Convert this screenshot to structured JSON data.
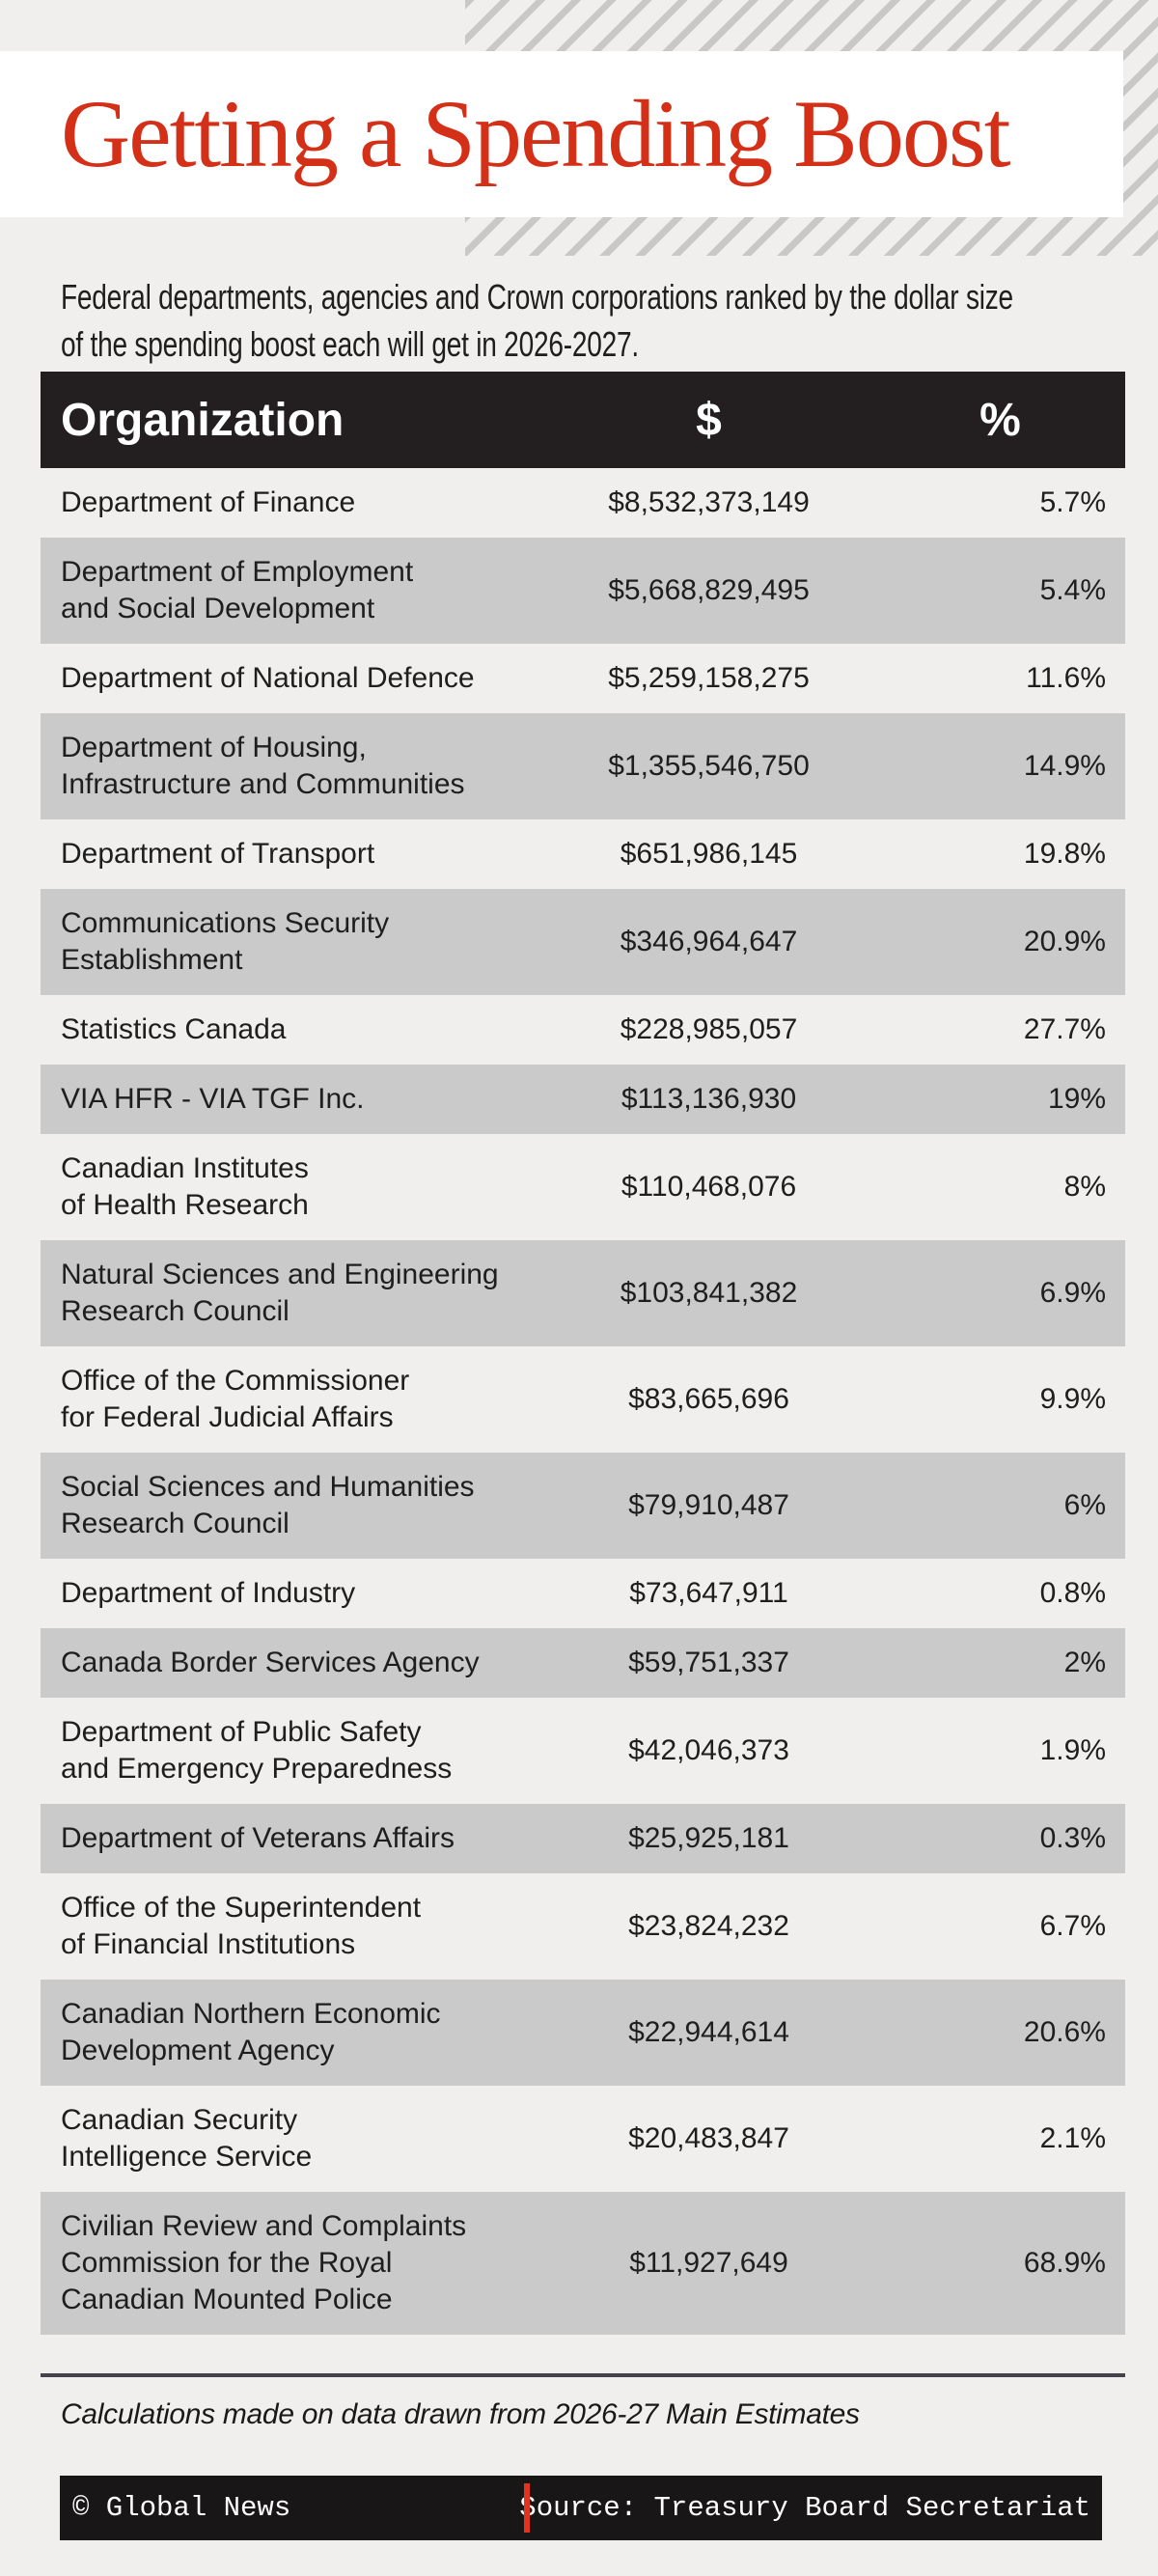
{
  "chart_data": {
    "type": "table",
    "title": "Getting a Spending Boost",
    "subtitle": "Federal departments, agencies and Crown corporations ranked by the dollar size\nof the spending boost each will get in 2026-2027.",
    "columns": [
      "Organization",
      "$",
      "%"
    ],
    "rows": [
      {
        "org": "Department of Finance",
        "amount": "$8,532,373,149",
        "pct": "5.7%"
      },
      {
        "org": "Department of Employment\nand Social Development",
        "amount": "$5,668,829,495",
        "pct": "5.4%"
      },
      {
        "org": "Department of National Defence",
        "amount": "$5,259,158,275",
        "pct": "11.6%"
      },
      {
        "org": "Department of Housing,\nInfrastructure and Communities",
        "amount": "$1,355,546,750",
        "pct": "14.9%"
      },
      {
        "org": "Department of Transport",
        "amount": "$651,986,145",
        "pct": "19.8%"
      },
      {
        "org": "Communications Security\nEstablishment",
        "amount": "$346,964,647",
        "pct": "20.9%"
      },
      {
        "org": "Statistics Canada",
        "amount": "$228,985,057",
        "pct": "27.7%"
      },
      {
        "org": "VIA HFR - VIA TGF Inc.",
        "amount": "$113,136,930",
        "pct": "19%"
      },
      {
        "org": "Canadian Institutes\nof Health Research",
        "amount": "$110,468,076",
        "pct": "8%"
      },
      {
        "org": "Natural Sciences and Engineering\nResearch Council",
        "amount": "$103,841,382",
        "pct": "6.9%"
      },
      {
        "org": "Office of the Commissioner\nfor Federal Judicial Affairs",
        "amount": "$83,665,696",
        "pct": "9.9%"
      },
      {
        "org": "Social Sciences and Humanities\nResearch Council",
        "amount": "$79,910,487",
        "pct": "6%"
      },
      {
        "org": "Department of Industry",
        "amount": "$73,647,911",
        "pct": "0.8%"
      },
      {
        "org": "Canada Border Services Agency",
        "amount": "$59,751,337",
        "pct": "2%"
      },
      {
        "org": "Department of Public Safety\nand Emergency Preparedness",
        "amount": "$42,046,373",
        "pct": "1.9%"
      },
      {
        "org": "Department of Veterans Affairs",
        "amount": "$25,925,181",
        "pct": "0.3%"
      },
      {
        "org": "Office of the Superintendent\nof Financial Institutions",
        "amount": "$23,824,232",
        "pct": "6.7%"
      },
      {
        "org": "Canadian Northern Economic\nDevelopment Agency",
        "amount": "$22,944,614",
        "pct": "20.6%"
      },
      {
        "org": "Canadian Security\nIntelligence Service",
        "amount": "$20,483,847",
        "pct": "2.1%"
      },
      {
        "org": "Civilian Review and Complaints\nCommission for the Royal\nCanadian Mounted Police",
        "amount": "$11,927,649",
        "pct": "68.9%"
      }
    ],
    "note": "Calculations made on data drawn from 2026-27 Main Estimates",
    "footer": {
      "credit": "© Global News",
      "source": "Source: Treasury Board Secretariat"
    },
    "layout_hints": {
      "row_shading": "alternating, even rows gray",
      "amount_column_alignment": "center",
      "pct_column_alignment": "right"
    },
    "colors": {
      "title_red": "#d43018",
      "footer_divider_red": "#e0341e",
      "header_bar_bg": "#231f20",
      "footer_bar_bg": "#191617",
      "gray_row_bg": "#cbcaca",
      "page_bg": "#f0efee",
      "rule_line": "#45414d",
      "stripe_line": "#c9c8c6"
    }
  }
}
